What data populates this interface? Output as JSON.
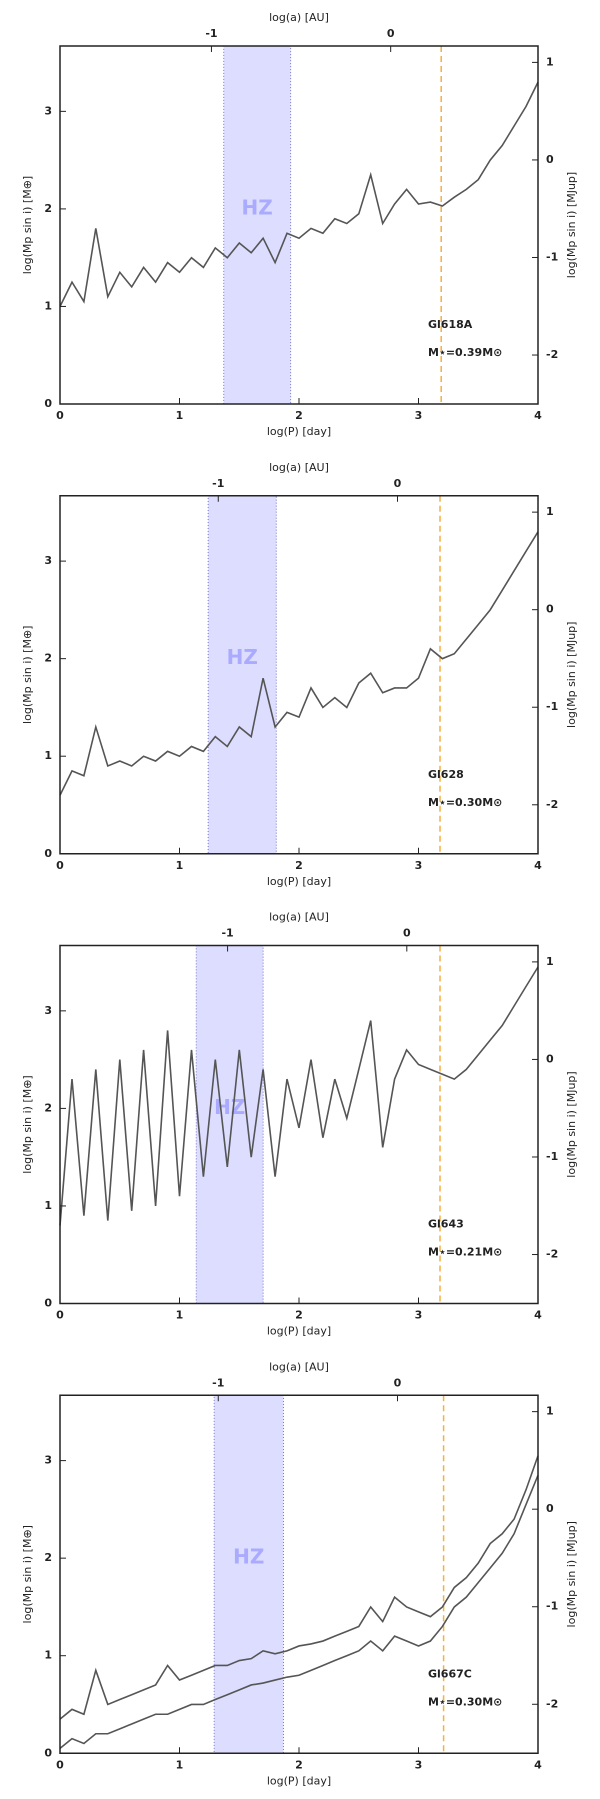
{
  "chart_data": [
    {
      "type": "line",
      "xlabel": "log(P) [day]",
      "x2label": "log(a) [AU]",
      "ylabel": "log(Mp sin i) [M⊕]",
      "y2label": "log(Mp sin i) [MJup]",
      "xlim": [
        0,
        4
      ],
      "xticks": [
        0,
        1,
        2,
        3,
        4
      ],
      "x2lim": [
        -1.845,
        0.822
      ],
      "x2ticks": [
        -1,
        0
      ],
      "ylim": [
        0,
        3.67
      ],
      "yticks": [
        0,
        1,
        2,
        3
      ],
      "y2lim": [
        -2.502,
        1.168
      ],
      "y2ticks": [
        -2,
        -1,
        0,
        1
      ],
      "hz": [
        1.37,
        1.93
      ],
      "hz_label": "HZ",
      "hz_color": "#aaaaff",
      "vline": 3.19,
      "vline_color": "#f5b041",
      "annotations": [
        "Gl618A",
        "M⋆=0.39M⊙"
      ],
      "x": [
        0,
        0.1,
        0.2,
        0.3,
        0.4,
        0.5,
        0.6,
        0.7,
        0.8,
        0.9,
        1.0,
        1.1,
        1.2,
        1.3,
        1.4,
        1.5,
        1.6,
        1.7,
        1.8,
        1.9,
        2.0,
        2.1,
        2.2,
        2.3,
        2.4,
        2.5,
        2.6,
        2.7,
        2.8,
        2.9,
        3.0,
        3.1,
        3.2,
        3.3,
        3.4,
        3.5,
        3.6,
        3.7,
        3.8,
        3.9,
        4.0
      ],
      "series": [
        {
          "color": "#555555",
          "values": [
            1.0,
            1.25,
            1.05,
            1.8,
            1.1,
            1.35,
            1.2,
            1.4,
            1.25,
            1.45,
            1.35,
            1.5,
            1.4,
            1.6,
            1.5,
            1.65,
            1.55,
            1.7,
            1.45,
            1.75,
            1.7,
            1.8,
            1.75,
            1.9,
            1.85,
            1.95,
            2.35,
            1.85,
            2.05,
            2.2,
            2.05,
            2.07,
            2.03,
            2.12,
            2.2,
            2.3,
            2.5,
            2.65,
            2.85,
            3.05,
            3.3
          ]
        }
      ]
    },
    {
      "type": "line",
      "xlabel": "log(P) [day]",
      "x2label": "log(a) [AU]",
      "ylabel": "log(Mp sin i) [M⊕]",
      "y2label": "log(Mp sin i) [MJup]",
      "xlim": [
        0,
        4
      ],
      "xticks": [
        0,
        1,
        2,
        3,
        4
      ],
      "x2lim": [
        -1.883,
        0.784
      ],
      "x2ticks": [
        -1,
        0
      ],
      "ylim": [
        0,
        3.67
      ],
      "yticks": [
        0,
        1,
        2,
        3
      ],
      "y2lim": [
        -2.502,
        1.168
      ],
      "y2ticks": [
        -2,
        -1,
        0,
        1
      ],
      "hz": [
        1.24,
        1.81
      ],
      "hz_label": "HZ",
      "hz_color": "#aaaaff",
      "vline": 3.18,
      "vline_color": "#f5b041",
      "annotations": [
        "Gl628",
        "M⋆=0.30M⊙"
      ],
      "x": [
        0,
        0.1,
        0.2,
        0.3,
        0.4,
        0.5,
        0.6,
        0.7,
        0.8,
        0.9,
        1.0,
        1.1,
        1.2,
        1.3,
        1.4,
        1.5,
        1.6,
        1.7,
        1.8,
        1.9,
        2.0,
        2.1,
        2.2,
        2.3,
        2.4,
        2.5,
        2.6,
        2.7,
        2.8,
        2.9,
        3.0,
        3.1,
        3.2,
        3.3,
        3.4,
        3.5,
        3.6,
        3.7,
        3.8,
        3.9,
        4.0
      ],
      "series": [
        {
          "color": "#555555",
          "values": [
            0.6,
            0.85,
            0.8,
            1.3,
            0.9,
            0.95,
            0.9,
            1.0,
            0.95,
            1.05,
            1.0,
            1.1,
            1.05,
            1.2,
            1.1,
            1.3,
            1.2,
            1.8,
            1.3,
            1.45,
            1.4,
            1.7,
            1.5,
            1.6,
            1.5,
            1.75,
            1.85,
            1.65,
            1.7,
            1.7,
            1.8,
            2.1,
            2.0,
            2.05,
            2.2,
            2.35,
            2.5,
            2.7,
            2.9,
            3.1,
            3.3
          ]
        }
      ]
    },
    {
      "type": "line",
      "xlabel": "log(P) [day]",
      "x2label": "log(a) [AU]",
      "ylabel": "log(Mp sin i) [M⊕]",
      "y2label": "log(Mp sin i) [MJup]",
      "xlim": [
        0,
        4
      ],
      "xticks": [
        0,
        1,
        2,
        3,
        4
      ],
      "x2lim": [
        -1.935,
        0.732
      ],
      "x2ticks": [
        -1,
        0
      ],
      "ylim": [
        0,
        3.67
      ],
      "yticks": [
        0,
        1,
        2,
        3
      ],
      "y2lim": [
        -2.502,
        1.168
      ],
      "y2ticks": [
        -2,
        -1,
        0,
        1
      ],
      "hz": [
        1.14,
        1.7
      ],
      "hz_label": "HZ",
      "hz_color": "#aaaaff",
      "vline": 3.18,
      "vline_color": "#f5b041",
      "annotations": [
        "Gl643",
        "M⋆=0.21M⊙"
      ],
      "x": [
        0,
        0.1,
        0.2,
        0.3,
        0.4,
        0.5,
        0.6,
        0.7,
        0.8,
        0.9,
        1.0,
        1.1,
        1.2,
        1.3,
        1.4,
        1.5,
        1.6,
        1.7,
        1.8,
        1.9,
        2.0,
        2.1,
        2.2,
        2.3,
        2.4,
        2.5,
        2.6,
        2.7,
        2.8,
        2.9,
        3.0,
        3.1,
        3.2,
        3.3,
        3.4,
        3.5,
        3.6,
        3.7,
        3.8,
        3.9,
        4.0
      ],
      "series": [
        {
          "color": "#555555",
          "values": [
            0.8,
            2.3,
            0.9,
            2.4,
            0.85,
            2.5,
            0.95,
            2.6,
            1.0,
            2.8,
            1.1,
            2.6,
            1.3,
            2.5,
            1.4,
            2.6,
            1.5,
            2.4,
            1.3,
            2.3,
            1.8,
            2.5,
            1.7,
            2.3,
            1.9,
            2.4,
            2.9,
            1.6,
            2.3,
            2.6,
            2.45,
            2.4,
            2.35,
            2.3,
            2.4,
            2.55,
            2.7,
            2.85,
            3.05,
            3.25,
            3.45
          ]
        }
      ]
    },
    {
      "type": "line",
      "xlabel": "log(P) [day]",
      "x2label": "log(a) [AU]",
      "ylabel": "log(Mp sin i) [M⊕]",
      "y2label": "log(Mp sin i) [MJup]",
      "xlim": [
        0,
        4
      ],
      "xticks": [
        0,
        1,
        2,
        3,
        4
      ],
      "x2lim": [
        -1.883,
        0.784
      ],
      "x2ticks": [
        -1,
        0
      ],
      "ylim": [
        0,
        3.67
      ],
      "yticks": [
        0,
        1,
        2,
        3
      ],
      "y2lim": [
        -2.502,
        1.168
      ],
      "y2ticks": [
        -2,
        -1,
        0,
        1
      ],
      "hz": [
        1.29,
        1.87
      ],
      "hz_label": "HZ",
      "hz_color": "#aaaaff",
      "vline": 3.21,
      "vline_color": "#f5b041",
      "annotations": [
        "Gl667C",
        "M⋆=0.30M⊙"
      ],
      "x": [
        0,
        0.1,
        0.2,
        0.3,
        0.4,
        0.5,
        0.6,
        0.7,
        0.8,
        0.9,
        1.0,
        1.1,
        1.2,
        1.3,
        1.4,
        1.5,
        1.6,
        1.7,
        1.8,
        1.9,
        2.0,
        2.1,
        2.2,
        2.3,
        2.4,
        2.5,
        2.6,
        2.7,
        2.8,
        2.9,
        3.0,
        3.1,
        3.2,
        3.3,
        3.4,
        3.5,
        3.6,
        3.7,
        3.8,
        3.9,
        4.0
      ],
      "series": [
        {
          "color": "#555555",
          "values": [
            0.35,
            0.45,
            0.4,
            0.85,
            0.5,
            0.55,
            0.6,
            0.65,
            0.7,
            0.9,
            0.75,
            0.8,
            0.85,
            0.9,
            0.9,
            0.95,
            0.97,
            1.05,
            1.02,
            1.05,
            1.1,
            1.12,
            1.15,
            1.2,
            1.25,
            1.3,
            1.5,
            1.35,
            1.6,
            1.5,
            1.45,
            1.4,
            1.5,
            1.7,
            1.8,
            1.95,
            2.15,
            2.25,
            2.4,
            2.7,
            3.05
          ]
        },
        {
          "color": "#555555",
          "values": [
            0.05,
            0.15,
            0.1,
            0.2,
            0.2,
            0.25,
            0.3,
            0.35,
            0.4,
            0.4,
            0.45,
            0.5,
            0.5,
            0.55,
            0.6,
            0.65,
            0.7,
            0.72,
            0.75,
            0.78,
            0.8,
            0.85,
            0.9,
            0.95,
            1.0,
            1.05,
            1.15,
            1.05,
            1.2,
            1.15,
            1.1,
            1.15,
            1.3,
            1.5,
            1.6,
            1.75,
            1.9,
            2.05,
            2.25,
            2.55,
            2.85
          ]
        }
      ]
    }
  ]
}
